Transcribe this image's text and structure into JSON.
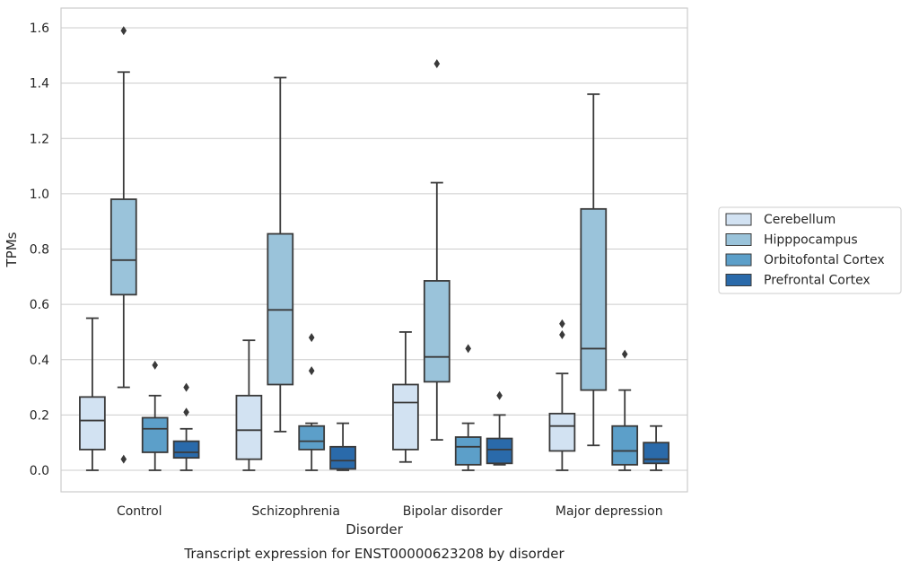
{
  "chart_data": {
    "type": "box",
    "title": "Transcript expression for ENST00000623208 by disorder",
    "xlabel": "Disorder",
    "ylabel": "TPMs",
    "ylim": [
      -0.08,
      1.67
    ],
    "yticks": [
      "0.0",
      "0.2",
      "0.4",
      "0.6",
      "0.8",
      "1.0",
      "1.2",
      "1.4",
      "1.6"
    ],
    "grid": "horizontal",
    "legend_position": "right",
    "categories": [
      "Control",
      "Schizophrenia",
      "Bipolar disorder",
      "Major depression"
    ],
    "series": [
      {
        "name": "Cerebellum",
        "color": "#d2e2f2",
        "boxes": [
          {
            "whislo": 0.0,
            "q1": 0.075,
            "med": 0.18,
            "q3": 0.265,
            "whishi": 0.55,
            "fliers": []
          },
          {
            "whislo": 0.0,
            "q1": 0.04,
            "med": 0.145,
            "q3": 0.27,
            "whishi": 0.47,
            "fliers": []
          },
          {
            "whislo": 0.03,
            "q1": 0.075,
            "med": 0.245,
            "q3": 0.31,
            "whishi": 0.5,
            "fliers": []
          },
          {
            "whislo": 0.0,
            "q1": 0.07,
            "med": 0.16,
            "q3": 0.205,
            "whishi": 0.35,
            "fliers": [
              0.49,
              0.53
            ]
          }
        ]
      },
      {
        "name": "Hipppocampus",
        "color": "#9ac3da",
        "boxes": [
          {
            "whislo": 0.3,
            "q1": 0.635,
            "med": 0.76,
            "q3": 0.98,
            "whishi": 1.44,
            "fliers": [
              0.04,
              1.59
            ]
          },
          {
            "whislo": 0.14,
            "q1": 0.31,
            "med": 0.58,
            "q3": 0.855,
            "whishi": 1.42,
            "fliers": []
          },
          {
            "whislo": 0.11,
            "q1": 0.32,
            "med": 0.41,
            "q3": 0.685,
            "whishi": 1.04,
            "fliers": [
              1.47
            ]
          },
          {
            "whislo": 0.09,
            "q1": 0.29,
            "med": 0.44,
            "q3": 0.945,
            "whishi": 1.36,
            "fliers": []
          }
        ]
      },
      {
        "name": "Orbitofontal Cortex",
        "color": "#5c9fc9",
        "boxes": [
          {
            "whislo": 0.0,
            "q1": 0.065,
            "med": 0.15,
            "q3": 0.19,
            "whishi": 0.27,
            "fliers": [
              0.38
            ]
          },
          {
            "whislo": 0.0,
            "q1": 0.075,
            "med": 0.105,
            "q3": 0.16,
            "whishi": 0.17,
            "fliers": [
              0.36,
              0.48
            ]
          },
          {
            "whislo": 0.0,
            "q1": 0.02,
            "med": 0.085,
            "q3": 0.12,
            "whishi": 0.17,
            "fliers": [
              0.44
            ]
          },
          {
            "whislo": 0.0,
            "q1": 0.02,
            "med": 0.07,
            "q3": 0.16,
            "whishi": 0.29,
            "fliers": [
              0.42
            ]
          }
        ]
      },
      {
        "name": "Prefrontal Cortex",
        "color": "#2a6aaa",
        "boxes": [
          {
            "whislo": 0.0,
            "q1": 0.045,
            "med": 0.065,
            "q3": 0.105,
            "whishi": 0.15,
            "fliers": [
              0.21,
              0.3
            ]
          },
          {
            "whislo": 0.0,
            "q1": 0.005,
            "med": 0.035,
            "q3": 0.085,
            "whishi": 0.17,
            "fliers": []
          },
          {
            "whislo": 0.02,
            "q1": 0.025,
            "med": 0.075,
            "q3": 0.115,
            "whishi": 0.2,
            "fliers": [
              0.27
            ]
          },
          {
            "whislo": 0.0,
            "q1": 0.025,
            "med": 0.04,
            "q3": 0.1,
            "whishi": 0.16,
            "fliers": []
          }
        ]
      }
    ]
  }
}
